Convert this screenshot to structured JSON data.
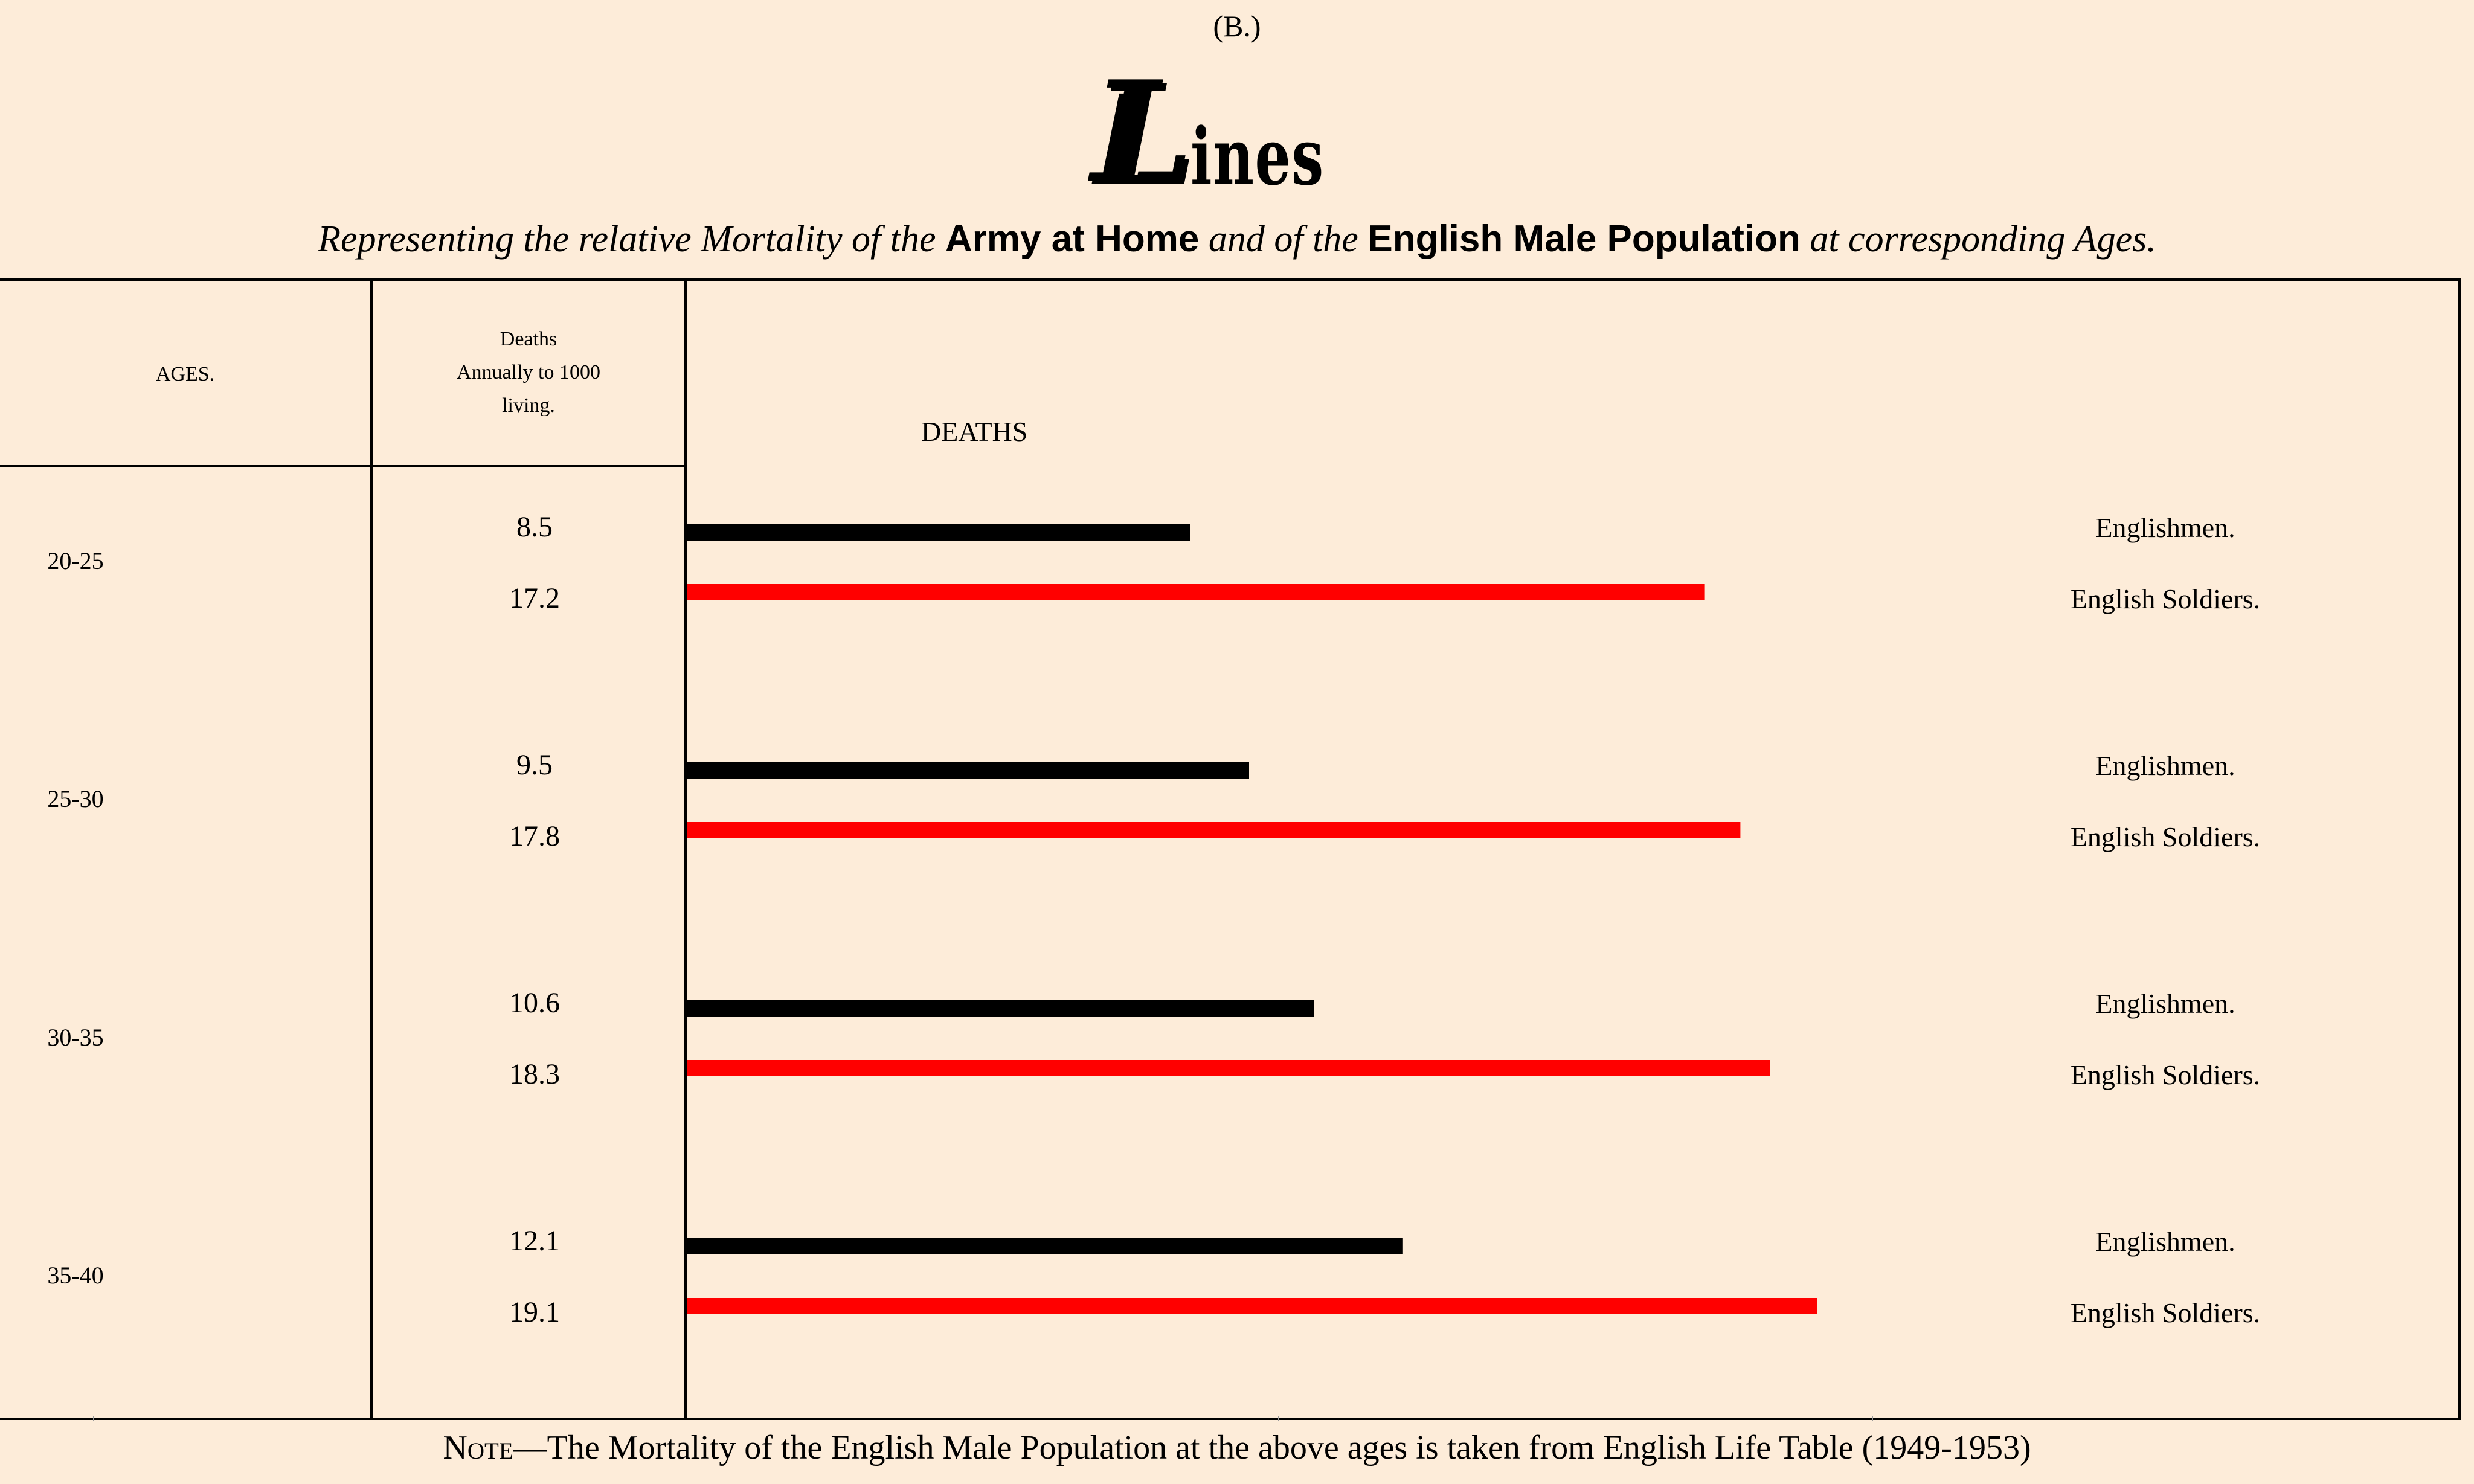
{
  "header_label": "(B.)",
  "title": {
    "initial": "L",
    "rest": "ines"
  },
  "subtitle": {
    "part1": "Representing the relative Mortality of the",
    "army": "Army at Home",
    "part2": "and of the",
    "population": "English Male Population",
    "part3": "at corresponding Ages."
  },
  "table_headers": {
    "ages": "AGES.",
    "deaths_line1": "Deaths",
    "deaths_line2": "Annually to 1000",
    "deaths_line3": "living."
  },
  "colors": {
    "Englishmen": "#000000",
    "English Soldiers": "#ff0000",
    "background": "#fdecd9"
  },
  "note": {
    "lead": "Note",
    "text": "—The Mortality of the English Male Population at the above ages is taken from English Life Table (1949-1953)"
  },
  "chart_data": {
    "type": "bar",
    "orientation": "horizontal",
    "axis_label": "DEATHS",
    "xlim": [
      0,
      20
    ],
    "categories": [
      "20-25",
      "25-30",
      "30-35",
      "35-40"
    ],
    "series": [
      {
        "name": "Englishmen.",
        "values": [
          8.5,
          9.5,
          10.6,
          12.1
        ]
      },
      {
        "name": "English Soldiers.",
        "values": [
          17.2,
          17.8,
          18.3,
          19.1
        ]
      }
    ],
    "value_labels": {
      "Englishmen.": [
        "8.5",
        "9.5",
        "10.6",
        "12.1"
      ],
      "English Soldiers.": [
        "17.2",
        "17.8",
        "18.3",
        "19.1"
      ]
    }
  }
}
